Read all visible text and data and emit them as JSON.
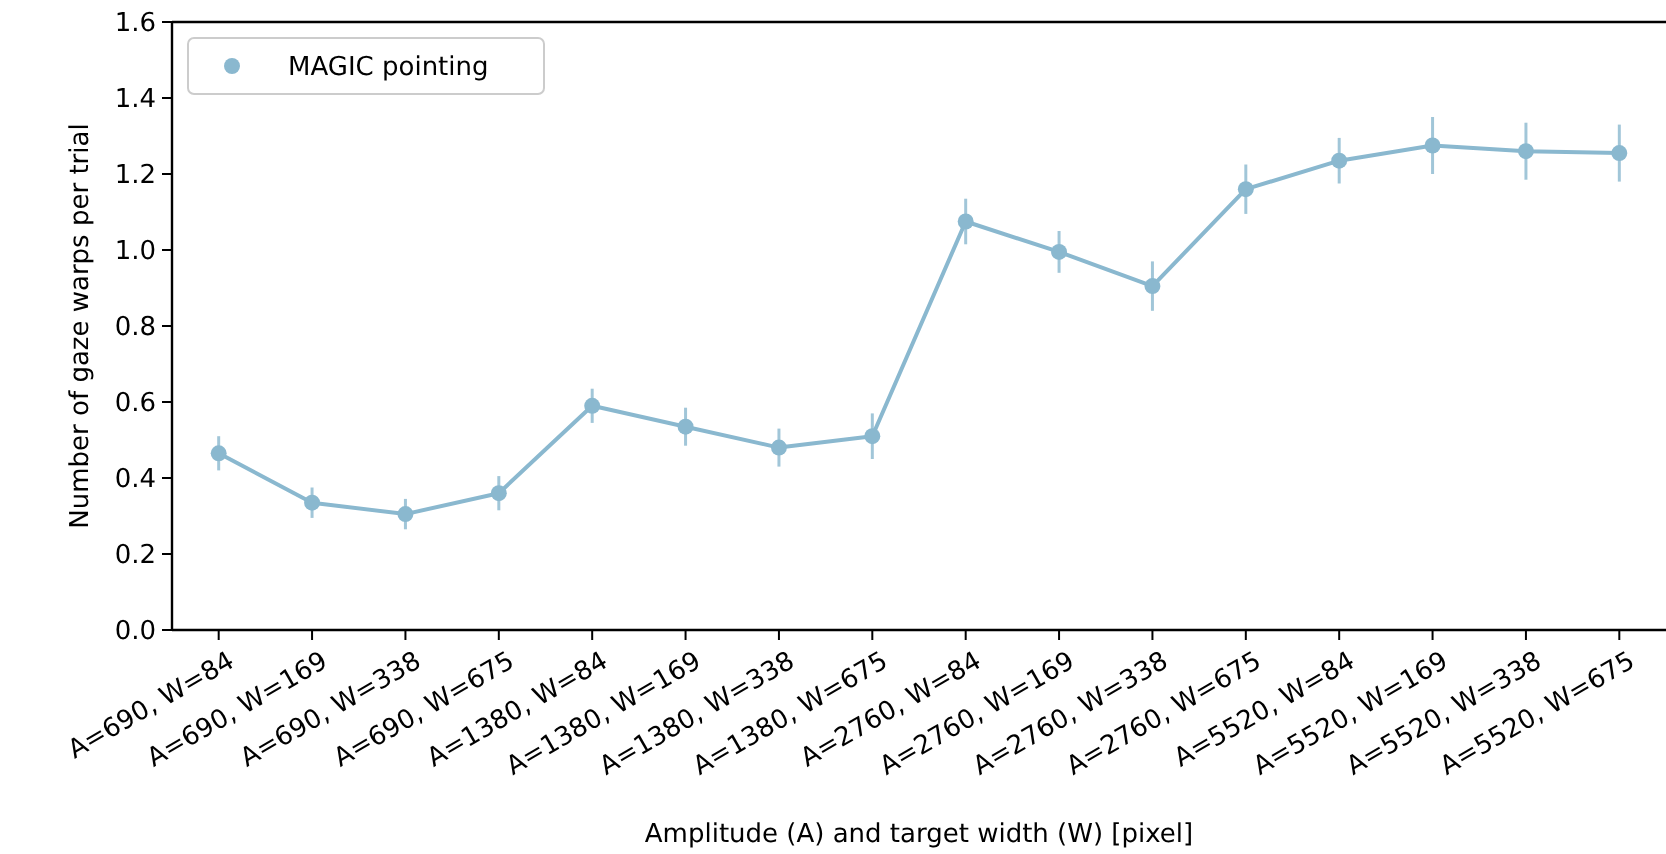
{
  "chart_data": {
    "type": "line",
    "xlabel": "Amplitude (A) and target width (W) [pixel]",
    "ylabel": "Number of gaze warps per trial",
    "categories": [
      "A=690, W=84",
      "A=690, W=169",
      "A=690, W=338",
      "A=690, W=675",
      "A=1380, W=84",
      "A=1380, W=169",
      "A=1380, W=338",
      "A=1380, W=675",
      "A=2760, W=84",
      "A=2760, W=169",
      "A=2760, W=338",
      "A=2760, W=675",
      "A=5520, W=84",
      "A=5520, W=169",
      "A=5520, W=338",
      "A=5520, W=675"
    ],
    "series": [
      {
        "name": "MAGIC pointing",
        "color": "#8ab8cf",
        "values": [
          0.465,
          0.335,
          0.305,
          0.36,
          0.59,
          0.535,
          0.48,
          0.51,
          1.075,
          0.995,
          0.905,
          1.16,
          1.235,
          1.275,
          1.26,
          1.255
        ],
        "errors": [
          0.045,
          0.04,
          0.04,
          0.045,
          0.045,
          0.05,
          0.05,
          0.06,
          0.06,
          0.055,
          0.065,
          0.065,
          0.06,
          0.075,
          0.075,
          0.075
        ]
      }
    ],
    "ylim": [
      0,
      1.6
    ],
    "yticks": [
      {
        "value": 0,
        "label": "0.0"
      },
      {
        "value": 0.2,
        "label": "0.2"
      },
      {
        "value": 0.4,
        "label": "0.4"
      },
      {
        "value": 0.6,
        "label": "0.6"
      },
      {
        "value": 0.8,
        "label": "0.8"
      },
      {
        "value": 1,
        "label": "1.0"
      },
      {
        "value": 1.2,
        "label": "1.2"
      },
      {
        "value": 1.4,
        "label": "1.4"
      },
      {
        "value": 1.6,
        "label": "1.6"
      }
    ],
    "legend": "top left",
    "marker": "circle",
    "line_style": "solid",
    "grid": false
  }
}
